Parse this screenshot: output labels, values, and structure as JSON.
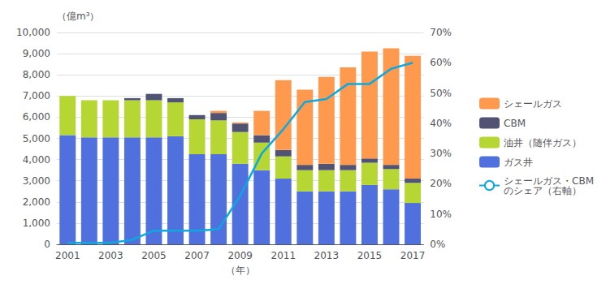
{
  "chart_data": {
    "type": "bar",
    "stacked": true,
    "grid": true,
    "legend": "right",
    "xlabel": "（年）",
    "ylabel": "（億m³）",
    "categories": [
      "2001",
      null,
      "2003",
      null,
      "2005",
      null,
      "2007",
      null,
      "2009",
      null,
      "2011",
      null,
      "2013",
      null,
      "2015",
      null,
      "2017"
    ],
    "series": [
      {
        "name": "ガス井",
        "values": [
          5150,
          5050,
          5050,
          5050,
          5050,
          5100,
          4250,
          4250,
          3800,
          3500,
          3100,
          2500,
          2500,
          2500,
          2800,
          2600,
          1950
        ]
      },
      {
        "name": "油井（随伴ガス）",
        "values": [
          1850,
          1750,
          1750,
          1750,
          1750,
          1600,
          1650,
          1600,
          1500,
          1300,
          1050,
          1000,
          1000,
          1000,
          1050,
          950,
          950
        ]
      },
      {
        "name": "CBM",
        "values": [
          0,
          0,
          0,
          100,
          300,
          200,
          200,
          350,
          400,
          350,
          300,
          250,
          300,
          250,
          200,
          200,
          200
        ]
      },
      {
        "name": "シェールガス",
        "values": [
          0,
          0,
          0,
          0,
          0,
          0,
          0,
          100,
          50,
          1150,
          3300,
          3550,
          4100,
          4600,
          5050,
          5500,
          5800
        ]
      },
      {
        "name": "シェールガス・CBM\nのシェア（右軸）",
        "type": "line",
        "axis": "y2",
        "values": [
          0.5,
          0.5,
          0.5,
          1.5,
          4.5,
          4.5,
          4.5,
          5.0,
          16,
          30,
          38,
          47,
          48,
          53,
          53,
          58,
          60
        ]
      }
    ],
    "ylim": [
      0,
      10000
    ],
    "yticks": [
      0,
      {
        "value": 1000,
        "label": "1,000"
      },
      {
        "value": 2000,
        "label": "2,000"
      },
      {
        "value": 3000,
        "label": "3,000"
      },
      {
        "value": 4000,
        "label": "4,000"
      },
      {
        "value": 5000,
        "label": "5,000"
      },
      {
        "value": 6000,
        "label": "6,000"
      },
      {
        "value": 7000,
        "label": "7,000"
      },
      {
        "value": 8000,
        "label": "8,000"
      },
      {
        "value": 9000,
        "label": "9,000"
      },
      {
        "value": 10000,
        "label": "10,000"
      }
    ],
    "y2lim": [
      0,
      70
    ],
    "y2ticks": [
      {
        "value": 0,
        "label": "0%"
      },
      {
        "value": 10,
        "label": "10%"
      },
      {
        "value": 20,
        "label": "20%"
      },
      {
        "value": 30,
        "label": "30%"
      },
      {
        "value": 40,
        "label": "40%"
      },
      {
        "value": 50,
        "label": "50%"
      },
      {
        "value": 60,
        "label": "60%"
      },
      {
        "value": 70,
        "label": "70%"
      }
    ]
  }
}
